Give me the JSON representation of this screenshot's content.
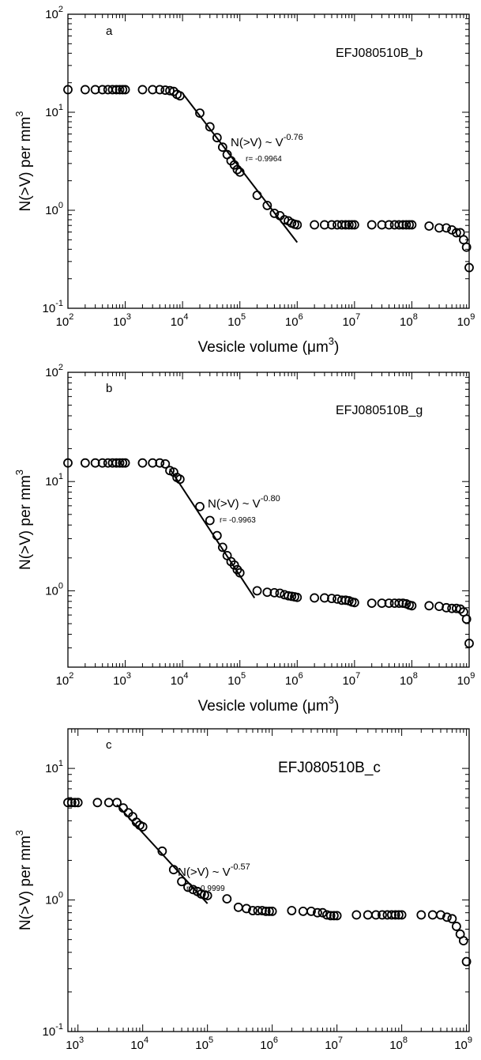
{
  "chart_data": [
    {
      "type": "scatter",
      "panel_label": "a",
      "sample": "EFJ080510B_b",
      "xlabel_main": "Vesicle volume (",
      "xlabel_mu": "μm",
      "xlabel_sup": "3",
      "xlabel_end": ")",
      "ylabel_main": "N(>V) per mm",
      "ylabel_sup": "3",
      "x_scale": "log",
      "y_scale": "log",
      "xlim": [
        100,
        1000000000
      ],
      "ylim": [
        0.1,
        100
      ],
      "x_ticks": [
        {
          "value": 100,
          "base": "10",
          "exp": "2"
        },
        {
          "value": 1000,
          "base": "10",
          "exp": "3"
        },
        {
          "value": 10000,
          "base": "10",
          "exp": "4"
        },
        {
          "value": 100000,
          "base": "10",
          "exp": "5"
        },
        {
          "value": 1000000,
          "base": "10",
          "exp": "6"
        },
        {
          "value": 10000000,
          "base": "10",
          "exp": "7"
        },
        {
          "value": 100000000,
          "base": "10",
          "exp": "8"
        },
        {
          "value": 1000000000,
          "base": "10",
          "exp": "9"
        }
      ],
      "y_ticks": [
        {
          "value": 0.1,
          "base": "10",
          "exp": "-1"
        },
        {
          "value": 1,
          "base": "10",
          "exp": "0"
        },
        {
          "value": 10,
          "base": "10",
          "exp": "1"
        },
        {
          "value": 100,
          "base": "10",
          "exp": "2"
        }
      ],
      "fit_label": "N(>V) ~ V",
      "fit_exponent": "-0.76",
      "fit_r": "r= -0.9964",
      "fit_line": [
        [
          10000,
          15.6
        ],
        [
          1000000,
          0.47
        ]
      ],
      "points": [
        [
          100,
          17
        ],
        [
          200,
          17
        ],
        [
          300,
          17
        ],
        [
          400,
          17
        ],
        [
          500,
          17
        ],
        [
          600,
          17
        ],
        [
          700,
          17
        ],
        [
          800,
          17
        ],
        [
          900,
          17
        ],
        [
          1000,
          17
        ],
        [
          2000,
          17
        ],
        [
          3000,
          17
        ],
        [
          4000,
          17
        ],
        [
          5000,
          16.8
        ],
        [
          6000,
          16.6
        ],
        [
          7000,
          16.3
        ],
        [
          8000,
          15.2
        ],
        [
          9000,
          14.7
        ],
        [
          20000,
          9.8
        ],
        [
          30000,
          7.1
        ],
        [
          40000,
          5.5
        ],
        [
          50000,
          4.4
        ],
        [
          60000,
          3.7
        ],
        [
          70000,
          3.2
        ],
        [
          80000,
          2.9
        ],
        [
          90000,
          2.6
        ],
        [
          100000,
          2.45
        ],
        [
          200000,
          1.42
        ],
        [
          300000,
          1.12
        ],
        [
          400000,
          0.93
        ],
        [
          500000,
          0.88
        ],
        [
          600000,
          0.8
        ],
        [
          700000,
          0.78
        ],
        [
          800000,
          0.74
        ],
        [
          900000,
          0.72
        ],
        [
          1000000,
          0.71
        ],
        [
          2000000,
          0.71
        ],
        [
          3000000,
          0.71
        ],
        [
          4000000,
          0.71
        ],
        [
          5000000,
          0.71
        ],
        [
          6000000,
          0.71
        ],
        [
          7000000,
          0.71
        ],
        [
          8000000,
          0.71
        ],
        [
          9000000,
          0.71
        ],
        [
          10000000,
          0.71
        ],
        [
          20000000,
          0.71
        ],
        [
          30000000,
          0.71
        ],
        [
          40000000,
          0.71
        ],
        [
          50000000,
          0.71
        ],
        [
          60000000,
          0.71
        ],
        [
          70000000,
          0.71
        ],
        [
          80000000,
          0.71
        ],
        [
          90000000,
          0.71
        ],
        [
          100000000,
          0.71
        ],
        [
          200000000,
          0.69
        ],
        [
          300000000,
          0.66
        ],
        [
          400000000,
          0.66
        ],
        [
          500000000,
          0.63
        ],
        [
          600000000,
          0.59
        ],
        [
          700000000,
          0.59
        ],
        [
          800000000,
          0.5
        ],
        [
          900000000,
          0.42
        ],
        [
          1000000000,
          0.26
        ]
      ]
    },
    {
      "type": "scatter",
      "panel_label": "b",
      "sample": "EFJ080510B_g",
      "xlabel_main": "Vesicle volume (",
      "xlabel_mu": "μm",
      "xlabel_sup": "3",
      "xlabel_end": ")",
      "ylabel_main": "N(>V) per mm",
      "ylabel_sup": "3",
      "x_scale": "log",
      "y_scale": "log",
      "xlim": [
        100,
        1000000000
      ],
      "ylim": [
        0.2,
        100
      ],
      "x_ticks": [
        {
          "value": 100,
          "base": "10",
          "exp": "2"
        },
        {
          "value": 1000,
          "base": "10",
          "exp": "3"
        },
        {
          "value": 10000,
          "base": "10",
          "exp": "4"
        },
        {
          "value": 100000,
          "base": "10",
          "exp": "5"
        },
        {
          "value": 1000000,
          "base": "10",
          "exp": "6"
        },
        {
          "value": 10000000,
          "base": "10",
          "exp": "7"
        },
        {
          "value": 100000000,
          "base": "10",
          "exp": "8"
        },
        {
          "value": 1000000000,
          "base": "10",
          "exp": "9"
        }
      ],
      "y_ticks": [
        {
          "value": 1,
          "base": "10",
          "exp": "0"
        },
        {
          "value": 10,
          "base": "10",
          "exp": "1"
        },
        {
          "value": 100,
          "base": "10",
          "exp": "2"
        }
      ],
      "fit_label": "N(>V) ~ V",
      "fit_exponent": "-0.80",
      "fit_r": "r= -0.9963",
      "fit_line": [
        [
          6000,
          13.1
        ],
        [
          180000,
          0.86
        ]
      ],
      "points": [
        [
          100,
          14.8
        ],
        [
          200,
          14.8
        ],
        [
          300,
          14.8
        ],
        [
          400,
          14.8
        ],
        [
          500,
          14.8
        ],
        [
          600,
          14.8
        ],
        [
          700,
          14.8
        ],
        [
          800,
          14.8
        ],
        [
          900,
          14.8
        ],
        [
          1000,
          14.8
        ],
        [
          2000,
          14.8
        ],
        [
          3000,
          14.8
        ],
        [
          4000,
          14.8
        ],
        [
          5000,
          14.5
        ],
        [
          6000,
          12.6
        ],
        [
          7000,
          12.2
        ],
        [
          8000,
          10.9
        ],
        [
          9000,
          10.5
        ],
        [
          20000,
          5.9
        ],
        [
          30000,
          4.4
        ],
        [
          40000,
          3.2
        ],
        [
          50000,
          2.5
        ],
        [
          60000,
          2.1
        ],
        [
          70000,
          1.85
        ],
        [
          80000,
          1.72
        ],
        [
          90000,
          1.56
        ],
        [
          100000,
          1.46
        ],
        [
          200000,
          1.0
        ],
        [
          300000,
          0.97
        ],
        [
          400000,
          0.96
        ],
        [
          500000,
          0.95
        ],
        [
          600000,
          0.92
        ],
        [
          700000,
          0.9
        ],
        [
          800000,
          0.89
        ],
        [
          900000,
          0.88
        ],
        [
          1000000,
          0.87
        ],
        [
          2000000,
          0.86
        ],
        [
          3000000,
          0.86
        ],
        [
          4000000,
          0.85
        ],
        [
          5000000,
          0.84
        ],
        [
          6000000,
          0.82
        ],
        [
          7000000,
          0.82
        ],
        [
          8000000,
          0.81
        ],
        [
          9000000,
          0.79
        ],
        [
          10000000,
          0.78
        ],
        [
          20000000,
          0.77
        ],
        [
          30000000,
          0.77
        ],
        [
          40000000,
          0.77
        ],
        [
          50000000,
          0.77
        ],
        [
          60000000,
          0.77
        ],
        [
          70000000,
          0.77
        ],
        [
          80000000,
          0.76
        ],
        [
          90000000,
          0.74
        ],
        [
          100000000,
          0.73
        ],
        [
          200000000,
          0.73
        ],
        [
          300000000,
          0.72
        ],
        [
          400000000,
          0.7
        ],
        [
          500000000,
          0.69
        ],
        [
          600000000,
          0.69
        ],
        [
          700000000,
          0.68
        ],
        [
          800000000,
          0.64
        ],
        [
          900000000,
          0.55
        ],
        [
          1000000000,
          0.33
        ]
      ]
    },
    {
      "type": "scatter",
      "panel_label": "c",
      "sample": "EFJ080510B_c",
      "xlabel_main": "Vesicle volume (",
      "xlabel_mu": "μm",
      "xlabel_sup": "3",
      "xlabel_end": ")",
      "ylabel_main": "N(>V) per mm",
      "ylabel_sup": "3",
      "x_scale": "log",
      "y_scale": "log",
      "xlim": [
        700,
        1100000000
      ],
      "ylim": [
        0.1,
        20
      ],
      "x_ticks": [
        {
          "value": 1000,
          "base": "10",
          "exp": "3"
        },
        {
          "value": 10000,
          "base": "10",
          "exp": "4"
        },
        {
          "value": 100000,
          "base": "10",
          "exp": "5"
        },
        {
          "value": 1000000,
          "base": "10",
          "exp": "6"
        },
        {
          "value": 10000000,
          "base": "10",
          "exp": "7"
        },
        {
          "value": 100000000,
          "base": "10",
          "exp": "8"
        },
        {
          "value": 1000000000,
          "base": "10",
          "exp": "9"
        }
      ],
      "y_ticks": [
        {
          "value": 0.1,
          "base": "10",
          "exp": "-1"
        },
        {
          "value": 1,
          "base": "10",
          "exp": "0"
        },
        {
          "value": 10,
          "base": "10",
          "exp": "1"
        }
      ],
      "fit_label": "N(>V) ~ V",
      "fit_exponent": "-0.57",
      "fit_r": "r = -0.9999",
      "fit_line": [
        [
          4000,
          5.3
        ],
        [
          100000,
          0.94
        ]
      ],
      "points": [
        [
          700,
          5.5
        ],
        [
          800,
          5.5
        ],
        [
          900,
          5.5
        ],
        [
          1000,
          5.5
        ],
        [
          2000,
          5.5
        ],
        [
          3000,
          5.5
        ],
        [
          4000,
          5.5
        ],
        [
          5000,
          5.0
        ],
        [
          6000,
          4.6
        ],
        [
          7000,
          4.3
        ],
        [
          8000,
          3.9
        ],
        [
          9000,
          3.7
        ],
        [
          10000,
          3.6
        ],
        [
          20000,
          2.35
        ],
        [
          30000,
          1.7
        ],
        [
          40000,
          1.38
        ],
        [
          50000,
          1.25
        ],
        [
          60000,
          1.2
        ],
        [
          70000,
          1.16
        ],
        [
          80000,
          1.11
        ],
        [
          90000,
          1.09
        ],
        [
          100000,
          1.08
        ],
        [
          200000,
          1.02
        ],
        [
          300000,
          0.88
        ],
        [
          400000,
          0.86
        ],
        [
          500000,
          0.83
        ],
        [
          600000,
          0.83
        ],
        [
          700000,
          0.83
        ],
        [
          800000,
          0.82
        ],
        [
          900000,
          0.82
        ],
        [
          1000000,
          0.82
        ],
        [
          2000000,
          0.83
        ],
        [
          3000000,
          0.82
        ],
        [
          4000000,
          0.82
        ],
        [
          5000000,
          0.8
        ],
        [
          6000000,
          0.8
        ],
        [
          7000000,
          0.77
        ],
        [
          8000000,
          0.76
        ],
        [
          9000000,
          0.76
        ],
        [
          10000000,
          0.76
        ],
        [
          20000000,
          0.77
        ],
        [
          30000000,
          0.77
        ],
        [
          40000000,
          0.77
        ],
        [
          50000000,
          0.77
        ],
        [
          60000000,
          0.77
        ],
        [
          70000000,
          0.77
        ],
        [
          80000000,
          0.77
        ],
        [
          90000000,
          0.77
        ],
        [
          100000000,
          0.77
        ],
        [
          200000000,
          0.77
        ],
        [
          300000000,
          0.77
        ],
        [
          400000000,
          0.77
        ],
        [
          500000000,
          0.74
        ],
        [
          600000000,
          0.72
        ],
        [
          700000000,
          0.63
        ],
        [
          800000000,
          0.55
        ],
        [
          900000000,
          0.49
        ],
        [
          1000000000,
          0.34
        ]
      ]
    }
  ]
}
